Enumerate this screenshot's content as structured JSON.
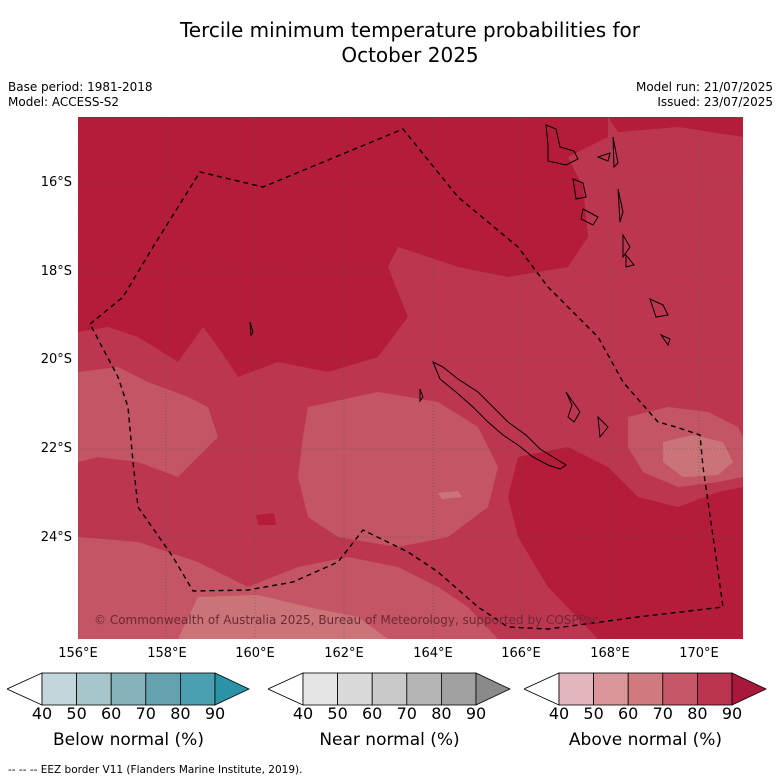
{
  "title_line1": "Tercile minimum temperature probabilities for",
  "title_line2": "October 2025",
  "base_period": "Base period: 1981-2018",
  "model": "Model: ACCESS-S2",
  "model_run": "Model run: 21/07/2025",
  "issued": "Issued: 23/07/2025",
  "map": {
    "lat_labels": [
      "16°S",
      "18°S",
      "20°S",
      "22°S",
      "24°S"
    ],
    "lon_labels": [
      "156°E",
      "158°E",
      "160°E",
      "162°E",
      "164°E",
      "166°E",
      "168°E",
      "170°E"
    ],
    "copyright": "© Commonwealth of Australia 2025, Bureau of Meteorology, supported by COSPPac",
    "colors": {
      "ab90": "#b41c3a",
      "ab80": "#bd3650",
      "ab70": "#c45564",
      "ab60": "#cb7478",
      "ab50": "#d49a9e"
    }
  },
  "colorbars": [
    {
      "label": "Below normal (%)",
      "ticks": [
        "40",
        "50",
        "60",
        "70",
        "80",
        "90"
      ],
      "colors": [
        "#ffffff",
        "#c3d6db",
        "#a6c6cc",
        "#86b2bc",
        "#64a2b0",
        "#4aa0b0",
        "#2b93a6"
      ]
    },
    {
      "label": "Near normal (%)",
      "ticks": [
        "40",
        "50",
        "60",
        "70",
        "80",
        "90"
      ],
      "colors": [
        "#ffffff",
        "#e5e5e5",
        "#d9d9d9",
        "#c9c9c9",
        "#b5b5b5",
        "#a0a0a0",
        "#8a8a8a"
      ]
    },
    {
      "label": "Above normal (%)",
      "ticks": [
        "40",
        "50",
        "60",
        "70",
        "80",
        "90"
      ],
      "colors": [
        "#ffffff",
        "#e2b6bc",
        "#d9959a",
        "#cf7a7e",
        "#c45868",
        "#b9344e",
        "#a8183a"
      ]
    }
  ],
  "footer": "-- -- -- EEZ border V11 (Flanders Marine Institute, 2019)."
}
